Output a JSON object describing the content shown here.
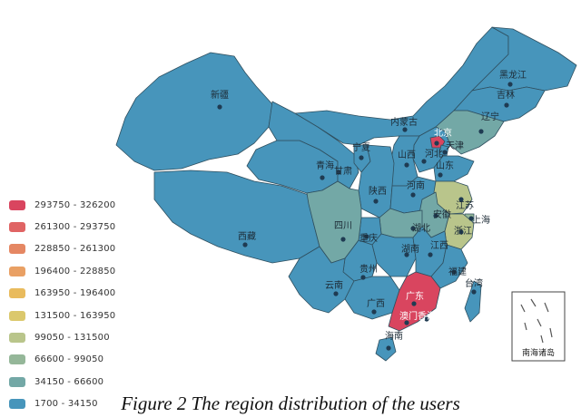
{
  "legend": {
    "items": [
      {
        "label": "293750 - 326200",
        "color": "#d9455f"
      },
      {
        "label": "261300 - 293750",
        "color": "#e06464"
      },
      {
        "label": "228850 - 261300",
        "color": "#e58763"
      },
      {
        "label": "196400 - 228850",
        "color": "#e9a064"
      },
      {
        "label": "163950 - 196400",
        "color": "#e9bb5d"
      },
      {
        "label": "131500 - 163950",
        "color": "#dbc86c"
      },
      {
        "label": "99050 - 131500",
        "color": "#b9c58b"
      },
      {
        "label": "66600 - 99050",
        "color": "#95b799"
      },
      {
        "label": "34150 - 66600",
        "color": "#73a8a6"
      },
      {
        "label": "1700 - 34150",
        "color": "#4795bb"
      }
    ]
  },
  "map": {
    "region_labels": {
      "heilongjiang": "黑龙江",
      "jilin": "吉林",
      "liaoning": "辽宁",
      "neimenggu": "内蒙古",
      "beijing": "北京",
      "tianjin": "天津",
      "hebei": "河北",
      "shanxi": "山西",
      "shandong": "山东",
      "ningxia": "宁夏",
      "gansu": "甘肃",
      "qinghai": "青海",
      "xinjiang": "新疆",
      "xizang": "西藏",
      "shaanxi": "陕西",
      "henan": "河南",
      "jiangsu": "江苏",
      "anhui": "安徽",
      "shanghai": "上海",
      "zhejiang": "浙江",
      "hubei": "湖北",
      "sichuan": "四川",
      "chongqing": "重庆",
      "hunan": "湖南",
      "jiangxi": "江西",
      "fujian": "福建",
      "taiwan": "台湾",
      "guizhou": "贵州",
      "yunnan": "云南",
      "guangxi": "广西",
      "guangdong": "广东",
      "aomen": "澳门",
      "xianggang": "香港",
      "hainan": "海南"
    },
    "inset_label": "南海诸岛"
  },
  "caption": "Figure 2 The region distribution of the users"
}
